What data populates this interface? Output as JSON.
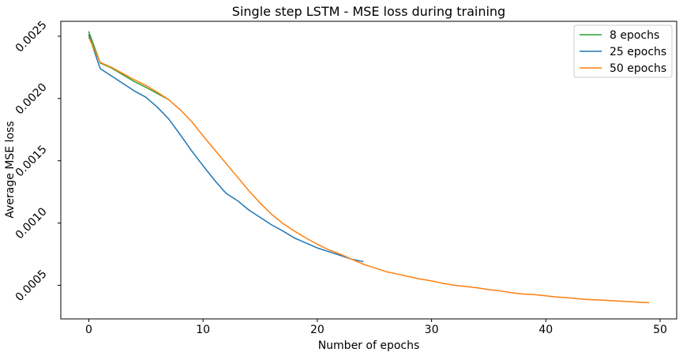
{
  "chart_data": {
    "type": "line",
    "title": "Single step LSTM - MSE loss during training",
    "xlabel": "Number of epochs",
    "ylabel": "Average MSE loss",
    "xlim": [
      -2.45,
      51.45
    ],
    "ylim": [
      0.00023,
      0.00262
    ],
    "xticks": [
      0,
      10,
      20,
      30,
      40,
      50
    ],
    "xtick_labels": [
      "0",
      "10",
      "20",
      "30",
      "40",
      "50"
    ],
    "yticks": [
      0.0005,
      0.001,
      0.0015,
      0.002,
      0.0025
    ],
    "ytick_labels": [
      "0.0005",
      "0.0010",
      "0.0015",
      "0.0020",
      "0.0025"
    ],
    "grid": false,
    "legend": "top-right",
    "series": [
      {
        "name": "8 epochs",
        "color": "#2ca02c",
        "x": [
          0,
          1,
          2,
          3,
          4,
          5,
          6,
          7
        ],
        "y": [
          0.002535,
          0.002285,
          0.002245,
          0.00219,
          0.002135,
          0.00209,
          0.00204,
          0.00199
        ]
      },
      {
        "name": "25 epochs",
        "color": "#1f77b4",
        "x": [
          0,
          1,
          2,
          3,
          4,
          5,
          6,
          7,
          8,
          9,
          10,
          11,
          12,
          13,
          14,
          15,
          16,
          17,
          18,
          19,
          20,
          21,
          22,
          23,
          24
        ],
        "y": [
          0.00251,
          0.00224,
          0.00218,
          0.00212,
          0.00206,
          0.00201,
          0.00193,
          0.001835,
          0.00171,
          0.00158,
          0.00146,
          0.001345,
          0.00124,
          0.00118,
          0.001105,
          0.001045,
          0.000985,
          0.000935,
          0.00088,
          0.00084,
          0.0008,
          0.00077,
          0.00074,
          0.00071,
          0.00069
        ]
      },
      {
        "name": "50 epochs",
        "color": "#ff7f0e",
        "x": [
          0,
          1,
          2,
          3,
          4,
          5,
          6,
          7,
          8,
          9,
          10,
          11,
          12,
          13,
          14,
          15,
          16,
          17,
          18,
          19,
          20,
          21,
          22,
          23,
          24,
          25,
          26,
          27,
          28,
          29,
          30,
          31,
          32,
          33,
          34,
          35,
          36,
          37,
          38,
          39,
          40,
          41,
          42,
          43,
          44,
          45,
          46,
          47,
          48,
          49
        ],
        "y": [
          0.00249,
          0.00229,
          0.00225,
          0.0022,
          0.00215,
          0.002105,
          0.00205,
          0.00199,
          0.00191,
          0.001815,
          0.0017,
          0.00159,
          0.00148,
          0.00137,
          0.00126,
          0.00116,
          0.00107,
          0.000995,
          0.000935,
          0.00088,
          0.00083,
          0.000785,
          0.00075,
          0.00071,
          0.00067,
          0.00064,
          0.00061,
          0.00059,
          0.00057,
          0.00055,
          0.000535,
          0.000515,
          0.0005,
          0.00049,
          0.00048,
          0.000465,
          0.000455,
          0.00044,
          0.00043,
          0.000425,
          0.000415,
          0.000405,
          0.0004,
          0.00039,
          0.000385,
          0.00038,
          0.000375,
          0.00037,
          0.000365,
          0.00036
        ]
      }
    ]
  }
}
